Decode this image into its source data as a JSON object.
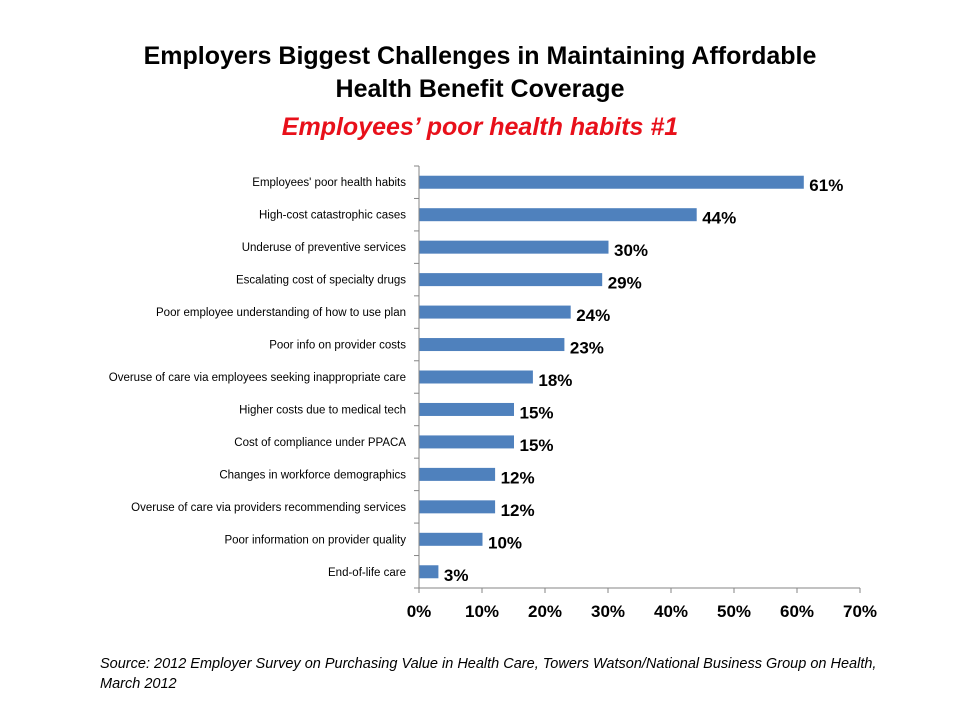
{
  "chart_data": {
    "type": "bar",
    "orientation": "horizontal",
    "title": "Employers Biggest Challenges in Maintaining Affordable Health Benefit Coverage",
    "title_lines": [
      "Employers Biggest Challenges in Maintaining Affordable",
      "Health Benefit Coverage"
    ],
    "subtitle": "Employees’ poor health habits #1",
    "categories": [
      "Employees' poor health habits",
      "High-cost catastrophic cases",
      "Underuse of preventive services",
      "Escalating cost of specialty drugs",
      "Poor employee understanding of how to use plan",
      "Poor info on provider costs",
      "Overuse of care via employees seeking inappropriate care",
      "Higher costs due to medical tech",
      "Cost of compliance under PPACA",
      "Changes in workforce demographics",
      "Overuse of care via providers recommending services",
      "Poor information on provider quality",
      "End-of-life care"
    ],
    "values": [
      61,
      44,
      30,
      29,
      24,
      23,
      18,
      15,
      15,
      12,
      12,
      10,
      3
    ],
    "data_labels": [
      "61%",
      "44%",
      "30%",
      "29%",
      "24%",
      "23%",
      "18%",
      "15%",
      "15%",
      "12%",
      "12%",
      "10%",
      "3%"
    ],
    "xlim": [
      0,
      70
    ],
    "xticks": [
      "0%",
      "10%",
      "20%",
      "30%",
      "40%",
      "50%",
      "60%",
      "70%"
    ],
    "xlabel": "",
    "ylabel": "",
    "grid": false,
    "bar_color": "#4f81bd",
    "subtitle_color": "#e8101a"
  },
  "source": "Source: 2012 Employer Survey on Purchasing Value in Health Care, Towers Watson/National Business Group on Health, March 2012"
}
